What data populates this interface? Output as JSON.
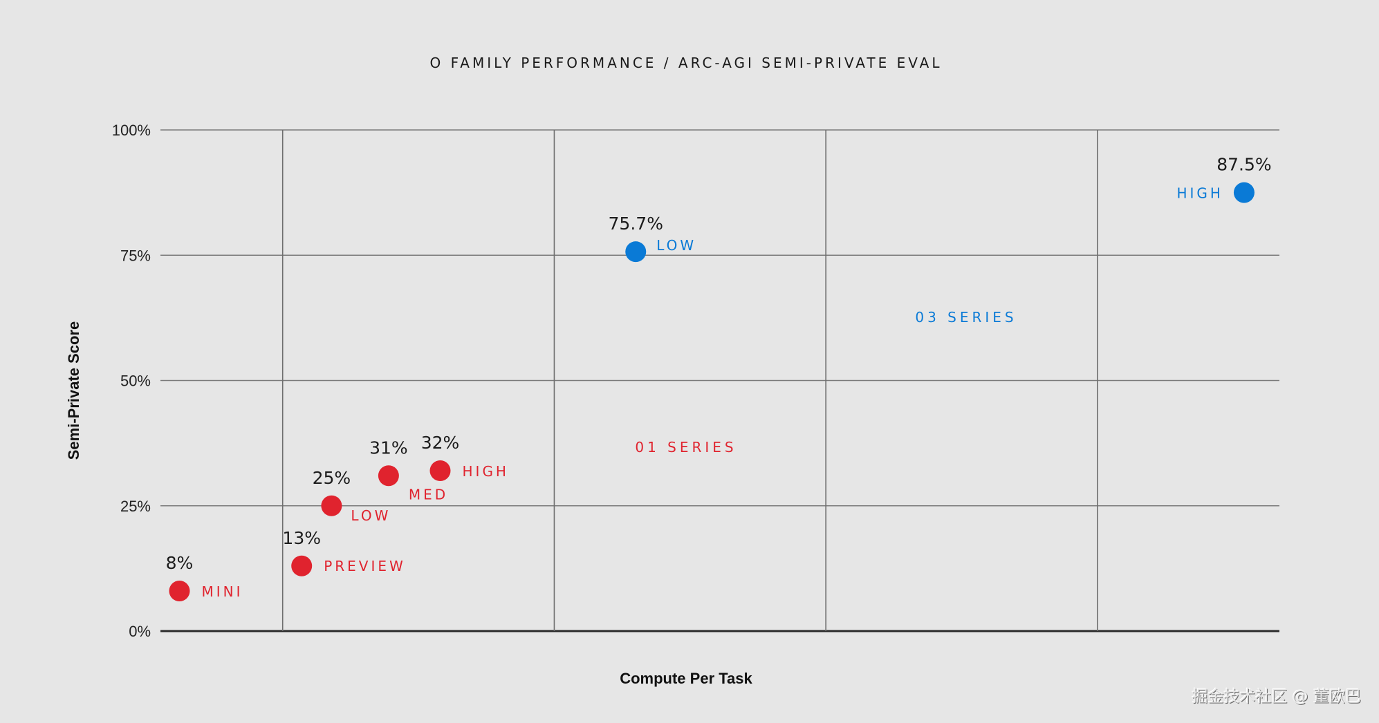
{
  "chart_data": {
    "type": "scatter",
    "title": "O FAMILY PERFORMANCE / ARC-AGI SEMI-PRIVATE EVAL",
    "xlabel": "Compute Per Task",
    "ylabel": "Semi-Private Score",
    "ylim": [
      0,
      100
    ],
    "xlim": [
      0,
      4.12
    ],
    "x_gridlines": [
      0.45,
      1.45,
      2.45,
      3.45
    ],
    "y_ticks": [
      0,
      25,
      50,
      75,
      100
    ],
    "y_tick_labels": [
      "0%",
      "25%",
      "50%",
      "75%",
      "100%"
    ],
    "grid": true,
    "series": [
      {
        "name": "01 SERIES",
        "label": "01 SERIES",
        "color": "#e0232e",
        "points": [
          {
            "x": 0.07,
            "y": 8,
            "value_label": "8%",
            "name": "MINI"
          },
          {
            "x": 0.52,
            "y": 13,
            "value_label": "13%",
            "name": "PREVIEW"
          },
          {
            "x": 0.63,
            "y": 25,
            "value_label": "25%",
            "name": "LOW"
          },
          {
            "x": 0.84,
            "y": 31,
            "value_label": "31%",
            "name": "MED"
          },
          {
            "x": 1.03,
            "y": 32,
            "value_label": "32%",
            "name": "HIGH"
          }
        ]
      },
      {
        "name": "03 SERIES",
        "label": "03 SERIES",
        "color": "#0a7ad6",
        "points": [
          {
            "x": 1.75,
            "y": 75.7,
            "value_label": "75.7%",
            "name": "LOW"
          },
          {
            "x": 3.99,
            "y": 87.5,
            "value_label": "87.5%",
            "name": "HIGH"
          }
        ]
      }
    ]
  },
  "watermark": "掘金技术社区 @ 董欧巴"
}
